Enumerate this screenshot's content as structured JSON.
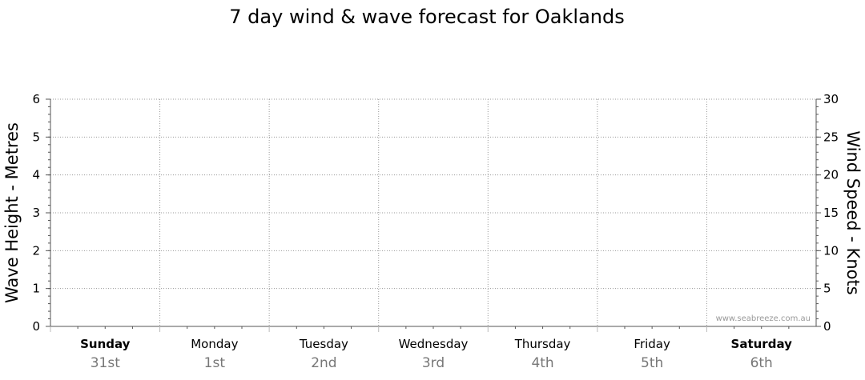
{
  "chart_data": {
    "type": "line",
    "title": "7 day wind & wave forecast for Oaklands",
    "ylabel_left": "Wave Height - Metres",
    "ylabel_right": "Wind Speed - Knots",
    "ylim_left": [
      0,
      6
    ],
    "yticks_left": [
      "0",
      "1",
      "2",
      "3",
      "4",
      "5",
      "6"
    ],
    "ylim_right": [
      0,
      30
    ],
    "yticks_right": [
      "0",
      "5",
      "10",
      "15",
      "20",
      "25",
      "30"
    ],
    "grid": true,
    "days": [
      {
        "name": "Sunday",
        "date": "31st",
        "bold": true
      },
      {
        "name": "Monday",
        "date": "1st",
        "bold": false
      },
      {
        "name": "Tuesday",
        "date": "2nd",
        "bold": false
      },
      {
        "name": "Wednesday",
        "date": "3rd",
        "bold": false
      },
      {
        "name": "Thursday",
        "date": "4th",
        "bold": false
      },
      {
        "name": "Friday",
        "date": "5th",
        "bold": false
      },
      {
        "name": "Saturday",
        "date": "6th",
        "bold": true
      }
    ],
    "series": []
  },
  "watermark": "www.seabreeze.com.au",
  "colors": {
    "grid": "#999999",
    "axis": "#555555",
    "date": "#777777"
  }
}
